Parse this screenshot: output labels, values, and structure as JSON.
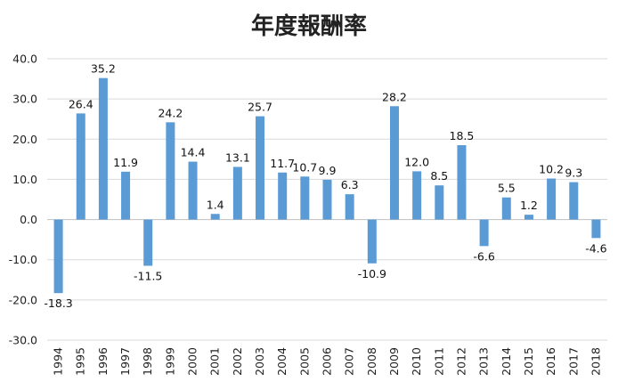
{
  "chart_data": {
    "type": "bar",
    "title": "年度報酬率",
    "xlabel": "",
    "ylabel": "",
    "ylim": [
      -30,
      40
    ],
    "y_ticks": [
      "40.0",
      "30.0",
      "20.0",
      "10.0",
      "0.0",
      "-10.0",
      "-20.0",
      "-30.0"
    ],
    "y_tick_values": [
      40,
      30,
      20,
      10,
      0,
      -10,
      -20,
      -30
    ],
    "categories": [
      "1994",
      "1995",
      "1996",
      "1997",
      "1998",
      "1999",
      "2000",
      "2001",
      "2002",
      "2003",
      "2004",
      "2005",
      "2006",
      "2007",
      "2008",
      "2009",
      "2010",
      "2011",
      "2012",
      "2013",
      "2014",
      "2015",
      "2016",
      "2017",
      "2018"
    ],
    "values": [
      -18.3,
      26.4,
      35.2,
      11.9,
      -11.5,
      24.2,
      14.4,
      1.4,
      13.1,
      25.7,
      11.7,
      10.7,
      9.9,
      6.3,
      -10.9,
      28.2,
      12.0,
      8.5,
      18.5,
      -6.6,
      5.5,
      1.2,
      10.2,
      9.3,
      -4.6
    ],
    "value_labels": [
      "-18.3",
      "26.4",
      "35.2",
      "11.9",
      "-11.5",
      "24.2",
      "14.4",
      "1.4",
      "13.1",
      "25.7",
      "11.7",
      "10.7",
      "9.9",
      "6.3",
      "-10.9",
      "28.2",
      "12.0",
      "8.5",
      "18.5",
      "-6.6",
      "5.5",
      "1.2",
      "10.2",
      "9.3",
      "-4.6"
    ],
    "grid": true,
    "legend": "none",
    "bar_color": "#5b9bd5"
  }
}
